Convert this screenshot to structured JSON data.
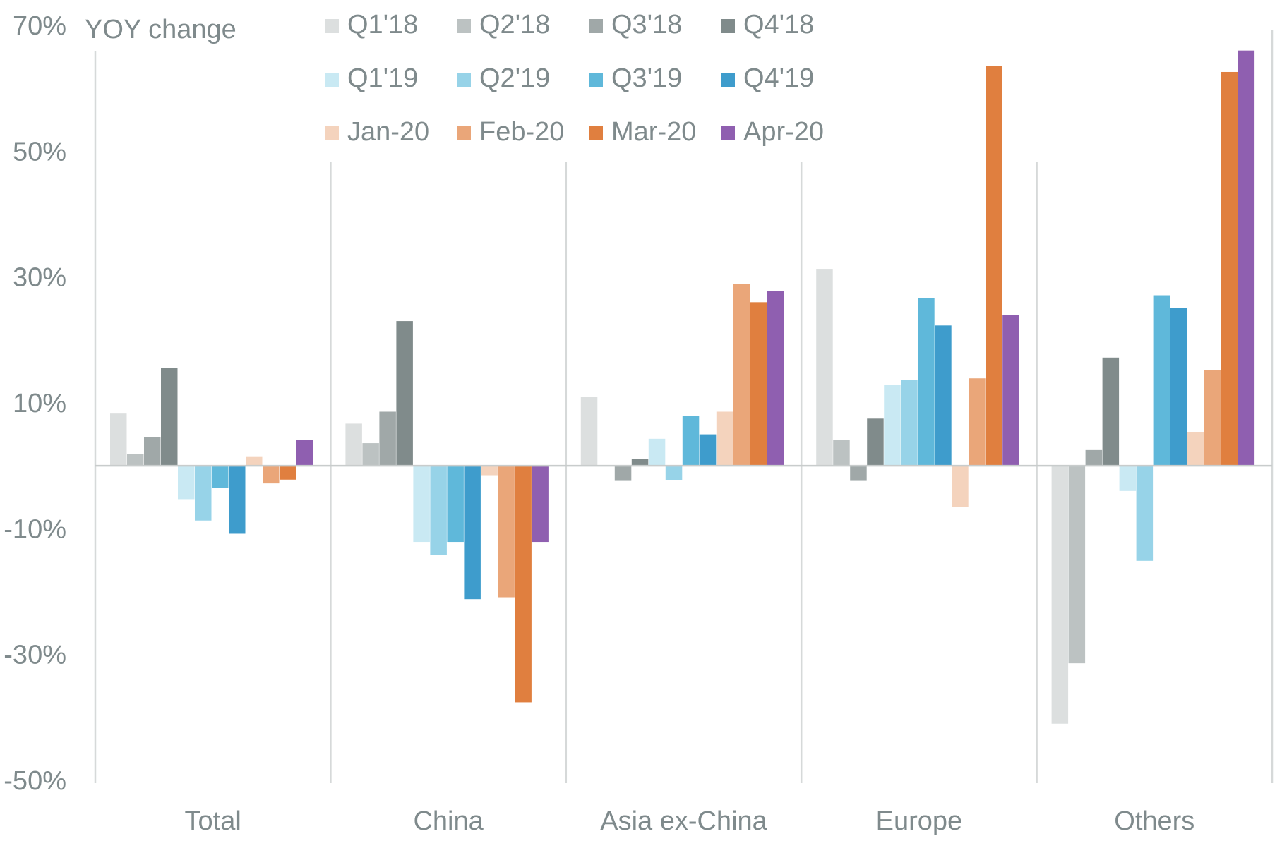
{
  "chart_data": {
    "type": "bar",
    "ylabel": "YOY change",
    "ylim": [
      -50,
      70
    ],
    "yticks": [
      "70%",
      "50%",
      "30%",
      "10%",
      "-10%",
      "-30%",
      "-50%"
    ],
    "ytick_values": [
      70,
      50,
      30,
      10,
      -10,
      -30,
      -50
    ],
    "categories": [
      "Total",
      "China",
      "Asia ex-China",
      "Europe",
      "Others"
    ],
    "legend_position": "top",
    "series": [
      {
        "name": "Q1'18",
        "color": "#dcdfdf",
        "values": [
          8.3,
          6.7,
          10.9,
          31.3,
          -41.0
        ]
      },
      {
        "name": "Q2'18",
        "color": "#bcc2c2",
        "values": [
          1.9,
          3.6,
          0.0,
          4.1,
          -31.4
        ]
      },
      {
        "name": "Q3'18",
        "color": "#a0a8a8",
        "values": [
          4.6,
          8.6,
          -2.4,
          -2.4,
          2.5
        ]
      },
      {
        "name": "Q4'18",
        "color": "#808b8b",
        "values": [
          15.6,
          23.0,
          1.1,
          7.5,
          17.2
        ]
      },
      {
        "name": "Q1'19",
        "color": "#c9e9f3",
        "values": [
          -5.3,
          -12.1,
          4.3,
          12.9,
          -4.0
        ]
      },
      {
        "name": "Q2'19",
        "color": "#97d3e8",
        "values": [
          -8.7,
          -14.2,
          -2.3,
          13.6,
          -15.1
        ]
      },
      {
        "name": "Q3'19",
        "color": "#5fb8da",
        "values": [
          -3.5,
          -12.1,
          7.9,
          26.6,
          27.1
        ]
      },
      {
        "name": "Q4'19",
        "color": "#3e9ccc",
        "values": [
          -10.8,
          -21.2,
          5.0,
          22.3,
          25.1
        ]
      },
      {
        "name": "Jan-20",
        "color": "#f4d3bd",
        "values": [
          1.4,
          -1.5,
          8.6,
          -6.5,
          5.3
        ]
      },
      {
        "name": "Feb-20",
        "color": "#eaa679",
        "values": [
          -2.8,
          -20.9,
          28.9,
          13.9,
          15.2
        ]
      },
      {
        "name": "Mar-20",
        "color": "#e07f3f",
        "values": [
          -2.2,
          -37.6,
          26.0,
          63.6,
          62.6
        ]
      },
      {
        "name": "Apr-20",
        "color": "#8f5fb0",
        "values": [
          4.1,
          -12.1,
          27.8,
          24.0,
          66.0
        ]
      }
    ]
  }
}
